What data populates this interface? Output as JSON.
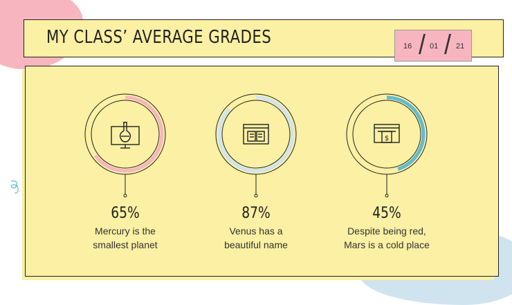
{
  "slide": {
    "title": "MY CLASS’ AVERAGE GRADES",
    "date": {
      "day": "16",
      "month": "01",
      "year": "21"
    }
  },
  "colors": {
    "background": "#ffffff",
    "panel": "#fbf0a3",
    "pink": "#f7b6bf",
    "blue_light": "#cfe4ef",
    "teal": "#5fbcd3",
    "ring_base": "#fbf0a3"
  },
  "items": [
    {
      "percent_label": "65%",
      "value": 65,
      "description": "Mercury is the smallest planet",
      "line1": "Mercury is the",
      "line2": "smallest planet",
      "icon": "chemistry-monitor-icon",
      "ring_color": "#f7b6bf"
    },
    {
      "percent_label": "87%",
      "value": 87,
      "description": "Venus has a beautiful name",
      "line1": "Venus has a",
      "line2": "beautiful name",
      "icon": "book-browser-icon",
      "ring_color": "#cfe4ef"
    },
    {
      "percent_label": "45%",
      "value": 45,
      "description": "Despite being red, Mars is a cold place",
      "line1": "Despite being red,",
      "line2": "Mars is a cold place",
      "icon": "payment-browser-icon",
      "ring_color": "#5fbcd3"
    }
  ]
}
